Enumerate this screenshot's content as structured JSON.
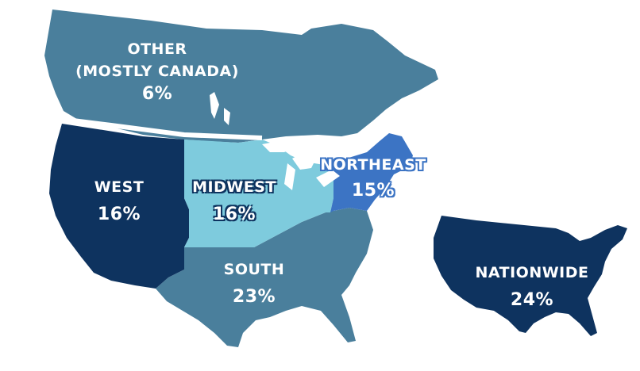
{
  "regions": [
    {
      "id": "other",
      "name_lines": [
        "OTHER",
        "(MOSTLY CANADA)"
      ],
      "percent": "6%",
      "color": "#4a7f9c"
    },
    {
      "id": "west",
      "name_lines": [
        "WEST"
      ],
      "percent": "16%",
      "color": "#0e335f"
    },
    {
      "id": "midwest",
      "name_lines": [
        "MIDWEST"
      ],
      "percent": "16%",
      "color": "#7ecbdd"
    },
    {
      "id": "northeast",
      "name_lines": [
        "NORTHEAST"
      ],
      "percent": "15%",
      "color": "#3c74c4"
    },
    {
      "id": "south",
      "name_lines": [
        "SOUTH"
      ],
      "percent": "23%",
      "color": "#4a7f9c"
    },
    {
      "id": "nationwide",
      "name_lines": [
        "NATIONWIDE"
      ],
      "percent": "24%",
      "color": "#0e335f"
    }
  ]
}
